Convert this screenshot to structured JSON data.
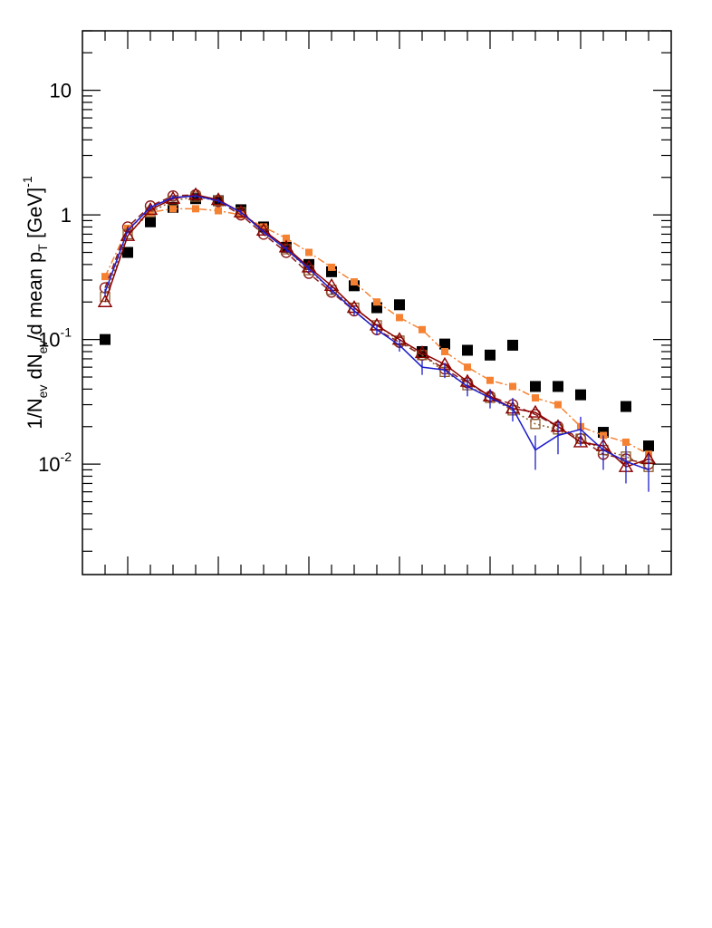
{
  "chart_data": {
    "type": "scatter",
    "title": "",
    "xlabel": "",
    "ylabel": {
      "parts": [
        {
          "t": "1/N",
          "s": "n"
        },
        {
          "t": "ev",
          "s": "sub"
        },
        {
          "t": " dN",
          "s": "n"
        },
        {
          "t": "ev",
          "s": "sub"
        },
        {
          "t": "/d mean p",
          "s": "n"
        },
        {
          "t": "T",
          "s": "sub"
        },
        {
          "t": " [GeV]",
          "s": "n"
        },
        {
          "t": "-1",
          "s": "sup"
        }
      ]
    },
    "y_scale": "log",
    "ylim": [
      0.0013,
      30
    ],
    "xlim": [
      0,
      26
    ],
    "x_ticks_labeled": false,
    "y_tick_labels": [
      {
        "value": 0.01,
        "base": "10",
        "exp": "-2"
      },
      {
        "value": 0.1,
        "base": "10",
        "exp": "-1"
      },
      {
        "value": 1,
        "base": "1",
        "exp": ""
      },
      {
        "value": 10,
        "base": "10",
        "exp": ""
      }
    ],
    "x": [
      1,
      2,
      3,
      4,
      5,
      6,
      7,
      8,
      9,
      10,
      11,
      12,
      13,
      14,
      15,
      16,
      17,
      18,
      19,
      20,
      21,
      22,
      23,
      24,
      25
    ],
    "series": [
      {
        "color": "#000000",
        "marker": "filled-square",
        "line": "none",
        "values": [
          0.1,
          0.5,
          0.88,
          1.15,
          1.35,
          1.3,
          1.1,
          0.8,
          0.55,
          0.4,
          0.35,
          0.27,
          0.18,
          0.19,
          0.08,
          0.092,
          0.082,
          0.075,
          0.09,
          0.042,
          0.042,
          0.036,
          0.018,
          0.029,
          0.014
        ]
      },
      {
        "color": "#f58233",
        "marker": "filled-square-small",
        "line": "dash-dot",
        "values": [
          0.32,
          0.78,
          1.05,
          1.12,
          1.12,
          1.08,
          1.0,
          0.8,
          0.65,
          0.5,
          0.38,
          0.29,
          0.2,
          0.15,
          0.12,
          0.08,
          0.06,
          0.047,
          0.042,
          0.034,
          0.03,
          0.02,
          0.017,
          0.015,
          0.012
        ]
      },
      {
        "color": "#8b1a1a",
        "marker": "open-circle",
        "line": "dashed",
        "values": [
          0.26,
          0.8,
          1.18,
          1.42,
          1.45,
          1.28,
          1.0,
          0.7,
          0.5,
          0.34,
          0.24,
          0.17,
          0.12,
          0.095,
          0.075,
          0.058,
          0.045,
          0.035,
          0.03,
          0.025,
          0.02,
          0.016,
          0.012,
          0.011,
          0.01
        ]
      },
      {
        "color": "#8b5a2b",
        "marker": "open-square",
        "line": "dotted",
        "values": [
          0.22,
          0.7,
          1.05,
          1.3,
          1.4,
          1.3,
          1.05,
          0.75,
          0.53,
          0.36,
          0.25,
          0.18,
          0.13,
          0.098,
          0.075,
          0.055,
          0.043,
          0.034,
          0.027,
          0.021,
          0.019,
          0.016,
          0.013,
          0.0115,
          0.0095
        ]
      },
      {
        "color": "#8b0000",
        "marker": "open-triangle",
        "line": "solid",
        "values": [
          0.2,
          0.68,
          1.1,
          1.35,
          1.45,
          1.32,
          1.05,
          0.75,
          0.55,
          0.38,
          0.27,
          0.18,
          0.13,
          0.1,
          0.078,
          0.063,
          0.046,
          0.035,
          0.028,
          0.026,
          0.02,
          0.015,
          0.014,
          0.0095,
          0.011
        ]
      },
      {
        "color": "#1c1ccc",
        "marker": "error-bar",
        "line": "solid",
        "values": [
          0.24,
          0.75,
          1.15,
          1.38,
          1.42,
          1.3,
          1.05,
          0.73,
          0.53,
          0.37,
          0.25,
          0.17,
          0.12,
          0.09,
          0.06,
          0.057,
          0.042,
          0.034,
          0.028,
          0.013,
          0.017,
          0.019,
          0.013,
          0.0105,
          0.009
        ],
        "errors": [
          0.015,
          0.04,
          0.05,
          0.06,
          0.06,
          0.06,
          0.05,
          0.04,
          0.03,
          0.025,
          0.02,
          0.015,
          0.012,
          0.01,
          0.008,
          0.008,
          0.007,
          0.006,
          0.006,
          0.004,
          0.005,
          0.005,
          0.004,
          0.0035,
          0.003
        ]
      }
    ]
  }
}
